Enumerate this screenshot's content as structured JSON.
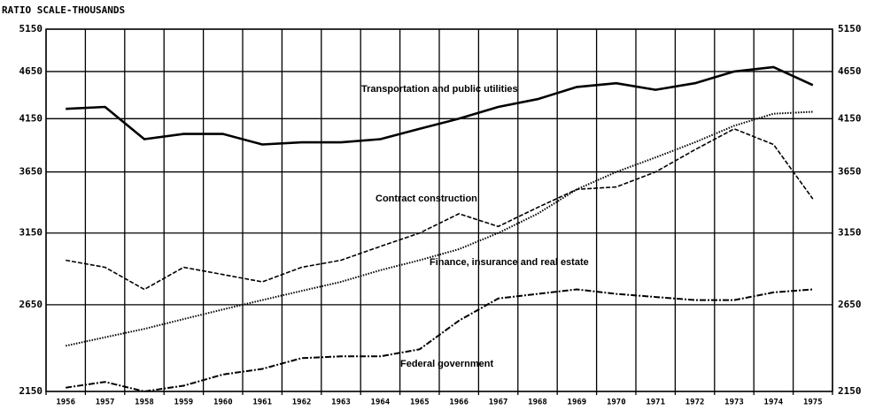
{
  "chart_data": {
    "type": "line",
    "axis_label": "RATIO SCALE-THOUSANDS",
    "log": true,
    "grid": true,
    "categories": [
      "1956",
      "1957",
      "1958",
      "1959",
      "1960",
      "1961",
      "1962",
      "1963",
      "1964",
      "1965",
      "1966",
      "1967",
      "1968",
      "1969",
      "1970",
      "1971",
      "1972",
      "1973",
      "1974",
      "1975"
    ],
    "ylim": [
      2150,
      5150
    ],
    "yticks": [
      2150,
      2650,
      3150,
      3650,
      4150,
      4650,
      5150
    ],
    "series": [
      {
        "name": "Transportation and public utilities",
        "color": "#000000",
        "style": "solid",
        "values": [
          4250,
          4270,
          3950,
          4000,
          4000,
          3900,
          3920,
          3920,
          3950,
          4050,
          4150,
          4270,
          4350,
          4480,
          4520,
          4450,
          4520,
          4650,
          4700,
          4500
        ]
      },
      {
        "name": "Contract construction",
        "color": "#000000",
        "style": "dashed",
        "values": [
          2950,
          2900,
          2750,
          2900,
          2850,
          2800,
          2900,
          2950,
          3050,
          3150,
          3300,
          3200,
          3350,
          3500,
          3520,
          3650,
          3850,
          4050,
          3900,
          3420
        ]
      },
      {
        "name": "Finance, insurance and real estate",
        "color": "#000000",
        "style": "dotted",
        "values": [
          2400,
          2450,
          2500,
          2560,
          2620,
          2680,
          2740,
          2800,
          2880,
          2950,
          3030,
          3150,
          3300,
          3500,
          3650,
          3780,
          3920,
          4080,
          4200,
          4220
        ]
      },
      {
        "name": "Federal government",
        "color": "#000000",
        "style": "dashdot",
        "values": [
          2170,
          2200,
          2150,
          2180,
          2240,
          2270,
          2330,
          2340,
          2340,
          2380,
          2550,
          2690,
          2720,
          2750,
          2720,
          2700,
          2680,
          2680,
          2730,
          2750
        ]
      }
    ]
  }
}
